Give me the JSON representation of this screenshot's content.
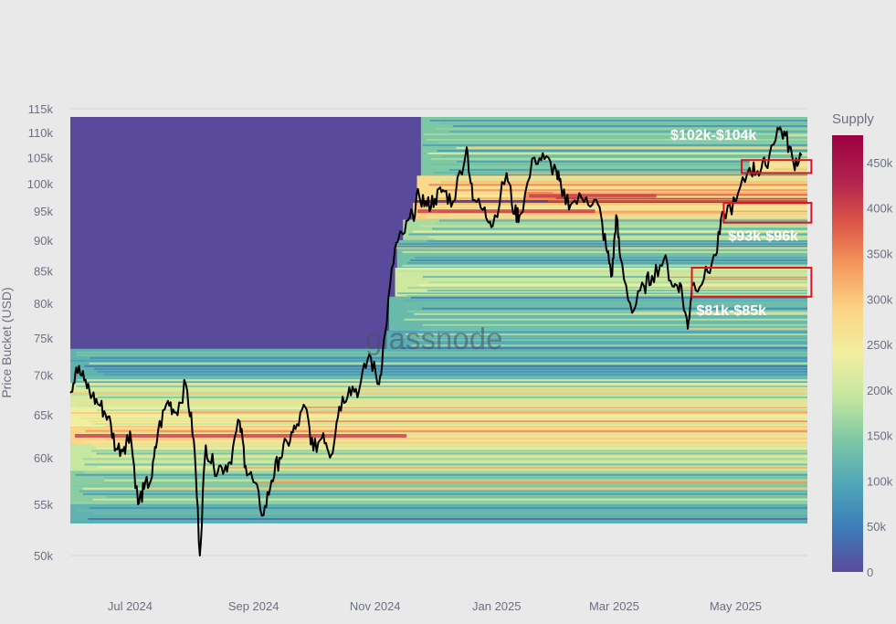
{
  "chart_data": {
    "type": "heatmap",
    "title": "",
    "ylabel": "Price Bucket (USD)",
    "xlabel": "",
    "y_scale": "log",
    "ylim": [
      48000,
      116000
    ],
    "xlim": [
      "2024-06-01",
      "2025-06-06"
    ],
    "y_ticks": [
      {
        "value": 115000,
        "label": "115k"
      },
      {
        "value": 110000,
        "label": "110k"
      },
      {
        "value": 105000,
        "label": "105k"
      },
      {
        "value": 100000,
        "label": "100k"
      },
      {
        "value": 95000,
        "label": "95k"
      },
      {
        "value": 90000,
        "label": "90k"
      },
      {
        "value": 85000,
        "label": "85k"
      },
      {
        "value": 80000,
        "label": "80k"
      },
      {
        "value": 75000,
        "label": "75k"
      },
      {
        "value": 70000,
        "label": "70k"
      },
      {
        "value": 65000,
        "label": "65k"
      },
      {
        "value": 60000,
        "label": "60k"
      },
      {
        "value": 55000,
        "label": "55k"
      },
      {
        "value": 50000,
        "label": "50k"
      }
    ],
    "x_ticks": [
      {
        "date": "2024-07-01",
        "label": "Jul 2024"
      },
      {
        "date": "2024-09-01",
        "label": "Sep 2024"
      },
      {
        "date": "2024-11-01",
        "label": "Nov 2024"
      },
      {
        "date": "2025-01-01",
        "label": "Jan 2025"
      },
      {
        "date": "2025-03-01",
        "label": "Mar 2025"
      },
      {
        "date": "2025-05-01",
        "label": "May 2025"
      }
    ],
    "colorbar": {
      "title": "Supply",
      "range": [
        0,
        480000
      ],
      "ticks": [
        {
          "value": 0,
          "label": "0"
        },
        {
          "value": 50000,
          "label": "50k"
        },
        {
          "value": 100000,
          "label": "100k"
        },
        {
          "value": 150000,
          "label": "150k"
        },
        {
          "value": 200000,
          "label": "200k"
        },
        {
          "value": 250000,
          "label": "250k"
        },
        {
          "value": 300000,
          "label": "300k"
        },
        {
          "value": 350000,
          "label": "350k"
        },
        {
          "value": 400000,
          "label": "400k"
        },
        {
          "value": 450000,
          "label": "450k"
        }
      ],
      "colorscale": [
        "#5a4a9c",
        "#3d7cb8",
        "#4fa6b8",
        "#7cc7a4",
        "#c5e79f",
        "#f2eea0",
        "#fcd585",
        "#f59a5c",
        "#dd5548",
        "#b0204e",
        "#9e0142"
      ]
    },
    "price_series": {
      "name": "BTC price",
      "color": "#000000",
      "points": [
        [
          "2024-06-01",
          67700
        ],
        [
          "2024-06-04",
          71000
        ],
        [
          "2024-06-08",
          69300
        ],
        [
          "2024-06-12",
          67300
        ],
        [
          "2024-06-16",
          66100
        ],
        [
          "2024-06-20",
          64800
        ],
        [
          "2024-06-24",
          61000
        ],
        [
          "2024-06-28",
          61200
        ],
        [
          "2024-07-01",
          63000
        ],
        [
          "2024-07-05",
          55000
        ],
        [
          "2024-07-08",
          56600
        ],
        [
          "2024-07-12",
          57900
        ],
        [
          "2024-07-15",
          63000
        ],
        [
          "2024-07-20",
          66700
        ],
        [
          "2024-07-24",
          65300
        ],
        [
          "2024-07-29",
          68800
        ],
        [
          "2024-08-02",
          62000
        ],
        [
          "2024-08-05",
          50000
        ],
        [
          "2024-08-08",
          61400
        ],
        [
          "2024-08-12",
          59000
        ],
        [
          "2024-08-16",
          58900
        ],
        [
          "2024-08-20",
          59500
        ],
        [
          "2024-08-25",
          64200
        ],
        [
          "2024-08-28",
          59100
        ],
        [
          "2024-09-01",
          57300
        ],
        [
          "2024-09-06",
          53900
        ],
        [
          "2024-09-10",
          57500
        ],
        [
          "2024-09-14",
          60000
        ],
        [
          "2024-09-18",
          61700
        ],
        [
          "2024-09-22",
          63300
        ],
        [
          "2024-09-27",
          65900
        ],
        [
          "2024-10-01",
          60800
        ],
        [
          "2024-10-06",
          62800
        ],
        [
          "2024-10-10",
          60300
        ],
        [
          "2024-10-14",
          66000
        ],
        [
          "2024-10-19",
          68400
        ],
        [
          "2024-10-24",
          68100
        ],
        [
          "2024-10-29",
          72700
        ],
        [
          "2024-11-03",
          68800
        ],
        [
          "2024-11-06",
          75600
        ],
        [
          "2024-11-11",
          88700
        ],
        [
          "2024-11-15",
          91000
        ],
        [
          "2024-11-20",
          94300
        ],
        [
          "2024-11-23",
          98000
        ],
        [
          "2024-11-27",
          95900
        ],
        [
          "2024-12-01",
          97200
        ],
        [
          "2024-12-05",
          98800
        ],
        [
          "2024-12-10",
          96600
        ],
        [
          "2024-12-17",
          107000
        ],
        [
          "2024-12-20",
          97000
        ],
        [
          "2024-12-26",
          95700
        ],
        [
          "2024-12-30",
          92400
        ],
        [
          "2025-01-06",
          102000
        ],
        [
          "2025-01-10",
          94500
        ],
        [
          "2025-01-13",
          94500
        ],
        [
          "2025-01-20",
          105000
        ],
        [
          "2025-01-25",
          104700
        ],
        [
          "2025-01-31",
          102400
        ],
        [
          "2025-02-03",
          97700
        ],
        [
          "2025-02-08",
          96500
        ],
        [
          "2025-02-15",
          97500
        ],
        [
          "2025-02-21",
          96100
        ],
        [
          "2025-02-25",
          88700
        ],
        [
          "2025-02-28",
          84300
        ],
        [
          "2025-03-02",
          94300
        ],
        [
          "2025-03-04",
          87200
        ],
        [
          "2025-03-10",
          78600
        ],
        [
          "2025-03-16",
          82600
        ],
        [
          "2025-03-20",
          84200
        ],
        [
          "2025-03-26",
          86900
        ],
        [
          "2025-03-31",
          82500
        ],
        [
          "2025-04-03",
          83100
        ],
        [
          "2025-04-07",
          76300
        ],
        [
          "2025-04-09",
          82600
        ],
        [
          "2025-04-15",
          83700
        ],
        [
          "2025-04-21",
          87500
        ],
        [
          "2025-04-25",
          94700
        ],
        [
          "2025-05-01",
          96500
        ],
        [
          "2025-05-08",
          103000
        ],
        [
          "2025-05-12",
          102400
        ],
        [
          "2025-05-16",
          103500
        ],
        [
          "2025-05-22",
          111000
        ],
        [
          "2025-05-26",
          109400
        ],
        [
          "2025-05-30",
          104000
        ],
        [
          "2025-06-03",
          105400
        ]
      ]
    },
    "bands": [
      {
        "range": [
          113500,
          116000
        ],
        "start": "2024-06-01",
        "intensity": 0.0
      },
      {
        "range": [
          101500,
          113500
        ],
        "start": "2024-11-24",
        "intensity": 0.3
      },
      {
        "range": [
          102000,
          104500
        ],
        "start": "2025-05-08",
        "intensity": 0.55
      },
      {
        "range": [
          97000,
          101500
        ],
        "start": "2024-11-22",
        "intensity": 0.58
      },
      {
        "range": [
          97000,
          98500
        ],
        "start": "2025-01-15",
        "intensity": 0.72
      },
      {
        "range": [
          93500,
          96500
        ],
        "start": "2024-11-20",
        "intensity": 0.62
      },
      {
        "range": [
          90000,
          93500
        ],
        "start": "2024-11-15",
        "intensity": 0.36
      },
      {
        "range": [
          85500,
          90000
        ],
        "start": "2024-11-12",
        "intensity": 0.28
      },
      {
        "range": [
          81000,
          85500
        ],
        "start": "2024-11-11",
        "intensity": 0.42
      },
      {
        "range": [
          76000,
          81000
        ],
        "start": "2024-11-08",
        "intensity": 0.26
      },
      {
        "range": [
          73500,
          76000
        ],
        "start": "2024-11-06",
        "intensity": 0.22
      },
      {
        "range": [
          69000,
          73500
        ],
        "start": "2024-06-01",
        "intensity": 0.24
      },
      {
        "range": [
          66000,
          69000
        ],
        "start": "2024-06-01",
        "intensity": 0.44
      },
      {
        "range": [
          63500,
          66000
        ],
        "start": "2024-06-01",
        "intensity": 0.5
      },
      {
        "range": [
          61500,
          63500
        ],
        "start": "2024-06-01",
        "intensity": 0.6
      },
      {
        "range": [
          58500,
          61500
        ],
        "start": "2024-06-01",
        "intensity": 0.4
      },
      {
        "range": [
          55000,
          58500
        ],
        "start": "2024-06-01",
        "intensity": 0.32
      },
      {
        "range": [
          53000,
          55000
        ],
        "start": "2024-06-01",
        "intensity": 0.24
      }
    ],
    "highlights": [
      {
        "label": "$102k-$104k",
        "low": 102000,
        "high": 104500,
        "start": "2025-05-04",
        "end": "2025-06-08",
        "label_pos": "above-left"
      },
      {
        "label": "$93k-$96k",
        "low": 93000,
        "high": 96500,
        "start": "2025-04-25",
        "end": "2025-06-08",
        "label_pos": "below"
      },
      {
        "label": "$81k-$85k",
        "low": 81000,
        "high": 85500,
        "start": "2025-04-09",
        "end": "2025-06-08",
        "label_pos": "below"
      }
    ],
    "watermark": "glassnode",
    "grid": true
  }
}
